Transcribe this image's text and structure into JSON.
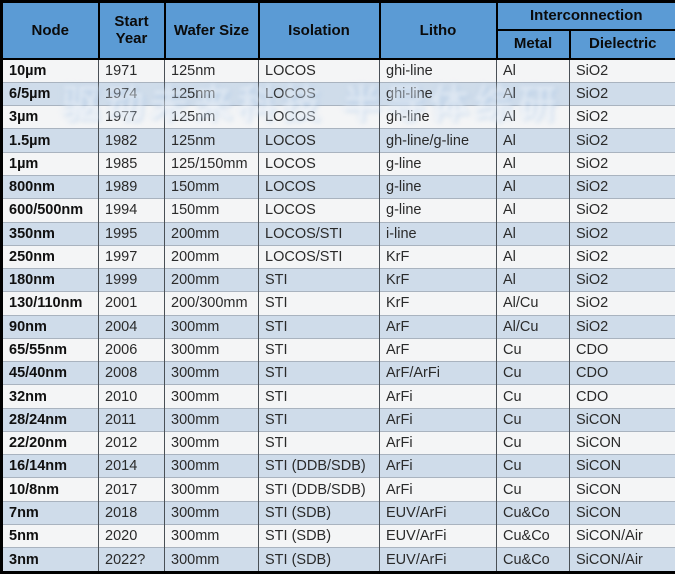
{
  "watermark": {
    "text": "驱动未来科技 半导体综研"
  },
  "colors": {
    "header_bg": "#5b9bd5",
    "stripe_bg": "#cfdcea",
    "row_bg": "#f4f5f6",
    "border_dark": "#000000",
    "grid_vertical": "#4a5056",
    "grid_horizontal": "#a9b3bf",
    "text": "#222222"
  },
  "chart_data": {
    "type": "table",
    "title": "",
    "header": {
      "node": "Node",
      "start_year": "Start Year",
      "wafer_size": "Wafer Size",
      "isolation": "Isolation",
      "litho": "Litho",
      "interconnection": "Interconnection",
      "metal": "Metal",
      "dielectric": "Dielectric"
    },
    "column_keys": [
      "node",
      "start_year",
      "wafer_size",
      "isolation",
      "litho",
      "metal",
      "dielectric"
    ],
    "rows": [
      [
        "10µm",
        "1971",
        "125nm",
        "LOCOS",
        "ghi-line",
        "Al",
        "SiO2"
      ],
      [
        "6/5µm",
        "1974",
        "125nm",
        "LOCOS",
        "ghi-line",
        "Al",
        "SiO2"
      ],
      [
        "3µm",
        "1977",
        "125nm",
        "LOCOS",
        "gh-line",
        "Al",
        "SiO2"
      ],
      [
        "1.5µm",
        "1982",
        "125nm",
        "LOCOS",
        "gh-line/g-line",
        "Al",
        "SiO2"
      ],
      [
        "1µm",
        "1985",
        "125/150mm",
        "LOCOS",
        "g-line",
        "Al",
        "SiO2"
      ],
      [
        "800nm",
        "1989",
        "150mm",
        "LOCOS",
        "g-line",
        "Al",
        "SiO2"
      ],
      [
        "600/500nm",
        "1994",
        "150mm",
        "LOCOS",
        "g-line",
        "Al",
        "SiO2"
      ],
      [
        "350nm",
        "1995",
        "200mm",
        "LOCOS/STI",
        "i-line",
        "Al",
        "SiO2"
      ],
      [
        "250nm",
        "1997",
        "200mm",
        "LOCOS/STI",
        "KrF",
        "Al",
        "SiO2"
      ],
      [
        "180nm",
        "1999",
        "200mm",
        "STI",
        "KrF",
        "Al",
        "SiO2"
      ],
      [
        "130/110nm",
        "2001",
        "200/300mm",
        "STI",
        "KrF",
        "Al/Cu",
        "SiO2"
      ],
      [
        "90nm",
        "2004",
        "300mm",
        "STI",
        "ArF",
        "Al/Cu",
        "SiO2"
      ],
      [
        "65/55nm",
        "2006",
        "300mm",
        "STI",
        "ArF",
        "Cu",
        "CDO"
      ],
      [
        "45/40nm",
        "2008",
        "300mm",
        "STI",
        "ArF/ArFi",
        "Cu",
        "CDO"
      ],
      [
        "32nm",
        "2010",
        "300mm",
        "STI",
        "ArFi",
        "Cu",
        "CDO"
      ],
      [
        "28/24nm",
        "2011",
        "300mm",
        "STI",
        "ArFi",
        "Cu",
        "SiCON"
      ],
      [
        "22/20nm",
        "2012",
        "300mm",
        "STI",
        "ArFi",
        "Cu",
        "SiCON"
      ],
      [
        "16/14nm",
        "2014",
        "300mm",
        "STI (DDB/SDB)",
        "ArFi",
        "Cu",
        "SiCON"
      ],
      [
        "10/8nm",
        "2017",
        "300mm",
        "STI (DDB/SDB)",
        "ArFi",
        "Cu",
        "SiCON"
      ],
      [
        "7nm",
        "2018",
        "300mm",
        "STI (SDB)",
        "EUV/ArFi",
        "Cu&Co",
        "SiCON"
      ],
      [
        "5nm",
        "2020",
        "300mm",
        "STI (SDB)",
        "EUV/ArFi",
        "Cu&Co",
        "SiCON/Air"
      ],
      [
        "3nm",
        "2022?",
        "300mm",
        "STI (SDB)",
        "EUV/ArFi",
        "Cu&Co",
        "SiCON/Air"
      ]
    ]
  }
}
